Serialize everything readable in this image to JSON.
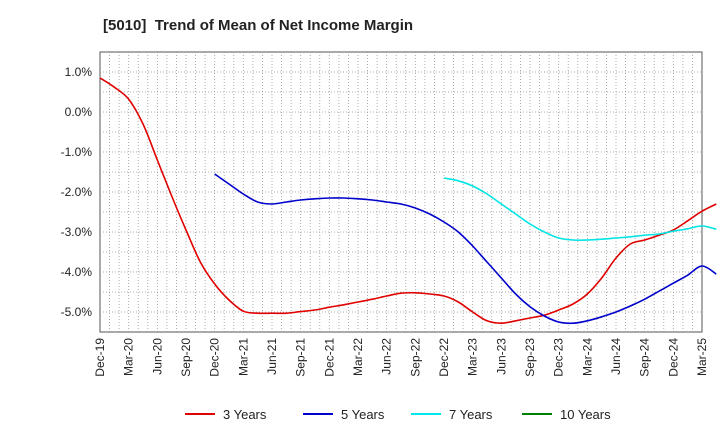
{
  "chart_data": {
    "type": "line",
    "title": "[5010]  Trend of Mean of Net Income Margin",
    "xlabel": "",
    "ylabel": "",
    "ylim": [
      -5.5,
      1.5
    ],
    "yticks": [
      1.0,
      0.0,
      -1.0,
      -2.0,
      -3.0,
      -4.0,
      -5.0
    ],
    "ytick_labels": [
      "1.0%",
      "0.0%",
      "-1.0%",
      "-2.0%",
      "-3.0%",
      "-4.0%",
      "-5.0%"
    ],
    "x_categories": [
      "Dec-19",
      "Mar-20",
      "Jun-20",
      "Sep-20",
      "Dec-20",
      "Mar-21",
      "Jun-21",
      "Sep-21",
      "Dec-21",
      "Mar-22",
      "Jun-22",
      "Sep-22",
      "Dec-22",
      "Mar-23",
      "Jun-23",
      "Sep-23",
      "Dec-23",
      "Mar-24",
      "Jun-24",
      "Sep-24",
      "Dec-24",
      "Mar-25"
    ],
    "grid": true,
    "legend_position": "bottom",
    "series": [
      {
        "name": "3 Years",
        "color": "#e00000",
        "points": [
          [
            0,
            0.85
          ],
          [
            0.5,
            0.62
          ],
          [
            1,
            0.32
          ],
          [
            1.5,
            -0.3
          ],
          [
            2,
            -1.2
          ],
          [
            2.5,
            -2.1
          ],
          [
            3,
            -2.95
          ],
          [
            3.5,
            -3.75
          ],
          [
            4,
            -4.3
          ],
          [
            4.5,
            -4.7
          ],
          [
            5,
            -4.98
          ],
          [
            5.5,
            -5.03
          ],
          [
            6,
            -5.03
          ],
          [
            6.5,
            -5.03
          ],
          [
            7,
            -4.99
          ],
          [
            7.5,
            -4.95
          ],
          [
            8,
            -4.88
          ],
          [
            8.5,
            -4.82
          ],
          [
            9,
            -4.75
          ],
          [
            9.5,
            -4.68
          ],
          [
            10,
            -4.6
          ],
          [
            10.5,
            -4.53
          ],
          [
            11,
            -4.52
          ],
          [
            11.5,
            -4.55
          ],
          [
            12,
            -4.6
          ],
          [
            12.5,
            -4.75
          ],
          [
            13,
            -5.0
          ],
          [
            13.5,
            -5.22
          ],
          [
            14,
            -5.28
          ],
          [
            14.5,
            -5.22
          ],
          [
            15,
            -5.15
          ],
          [
            15.5,
            -5.08
          ],
          [
            16,
            -4.95
          ],
          [
            16.5,
            -4.8
          ],
          [
            17,
            -4.55
          ],
          [
            17.5,
            -4.15
          ],
          [
            18,
            -3.65
          ],
          [
            18.5,
            -3.3
          ],
          [
            19,
            -3.2
          ],
          [
            19.5,
            -3.08
          ],
          [
            20,
            -2.95
          ],
          [
            20.5,
            -2.72
          ],
          [
            21,
            -2.48
          ],
          [
            21.5,
            -2.3
          ]
        ]
      },
      {
        "name": "5 Years",
        "color": "#0000cc",
        "points": [
          [
            4,
            -1.55
          ],
          [
            4.5,
            -1.8
          ],
          [
            5,
            -2.05
          ],
          [
            5.5,
            -2.25
          ],
          [
            6,
            -2.3
          ],
          [
            6.5,
            -2.25
          ],
          [
            7,
            -2.2
          ],
          [
            7.5,
            -2.17
          ],
          [
            8,
            -2.15
          ],
          [
            8.5,
            -2.15
          ],
          [
            9,
            -2.17
          ],
          [
            9.5,
            -2.2
          ],
          [
            10,
            -2.25
          ],
          [
            10.5,
            -2.3
          ],
          [
            11,
            -2.4
          ],
          [
            11.5,
            -2.55
          ],
          [
            12,
            -2.75
          ],
          [
            12.5,
            -3.0
          ],
          [
            13,
            -3.35
          ],
          [
            13.5,
            -3.75
          ],
          [
            14,
            -4.15
          ],
          [
            14.5,
            -4.55
          ],
          [
            15,
            -4.87
          ],
          [
            15.5,
            -5.1
          ],
          [
            16,
            -5.25
          ],
          [
            16.5,
            -5.28
          ],
          [
            17,
            -5.22
          ],
          [
            17.5,
            -5.12
          ],
          [
            18,
            -5.0
          ],
          [
            18.5,
            -4.85
          ],
          [
            19,
            -4.68
          ],
          [
            19.5,
            -4.48
          ],
          [
            20,
            -4.28
          ],
          [
            20.5,
            -4.08
          ],
          [
            21,
            -3.85
          ],
          [
            21.5,
            -4.05
          ]
        ]
      },
      {
        "name": "7 Years",
        "color": "#00e5e5",
        "points": [
          [
            12,
            -1.65
          ],
          [
            12.5,
            -1.72
          ],
          [
            13,
            -1.85
          ],
          [
            13.5,
            -2.05
          ],
          [
            14,
            -2.3
          ],
          [
            14.5,
            -2.55
          ],
          [
            15,
            -2.8
          ],
          [
            15.5,
            -3.0
          ],
          [
            16,
            -3.15
          ],
          [
            16.5,
            -3.2
          ],
          [
            17,
            -3.2
          ],
          [
            17.5,
            -3.18
          ],
          [
            18,
            -3.15
          ],
          [
            18.5,
            -3.12
          ],
          [
            19,
            -3.08
          ],
          [
            19.5,
            -3.05
          ],
          [
            20,
            -2.98
          ],
          [
            20.5,
            -2.92
          ],
          [
            21,
            -2.85
          ],
          [
            21.5,
            -2.93
          ]
        ]
      },
      {
        "name": "10 Years",
        "color": "#008000",
        "points": []
      }
    ]
  }
}
